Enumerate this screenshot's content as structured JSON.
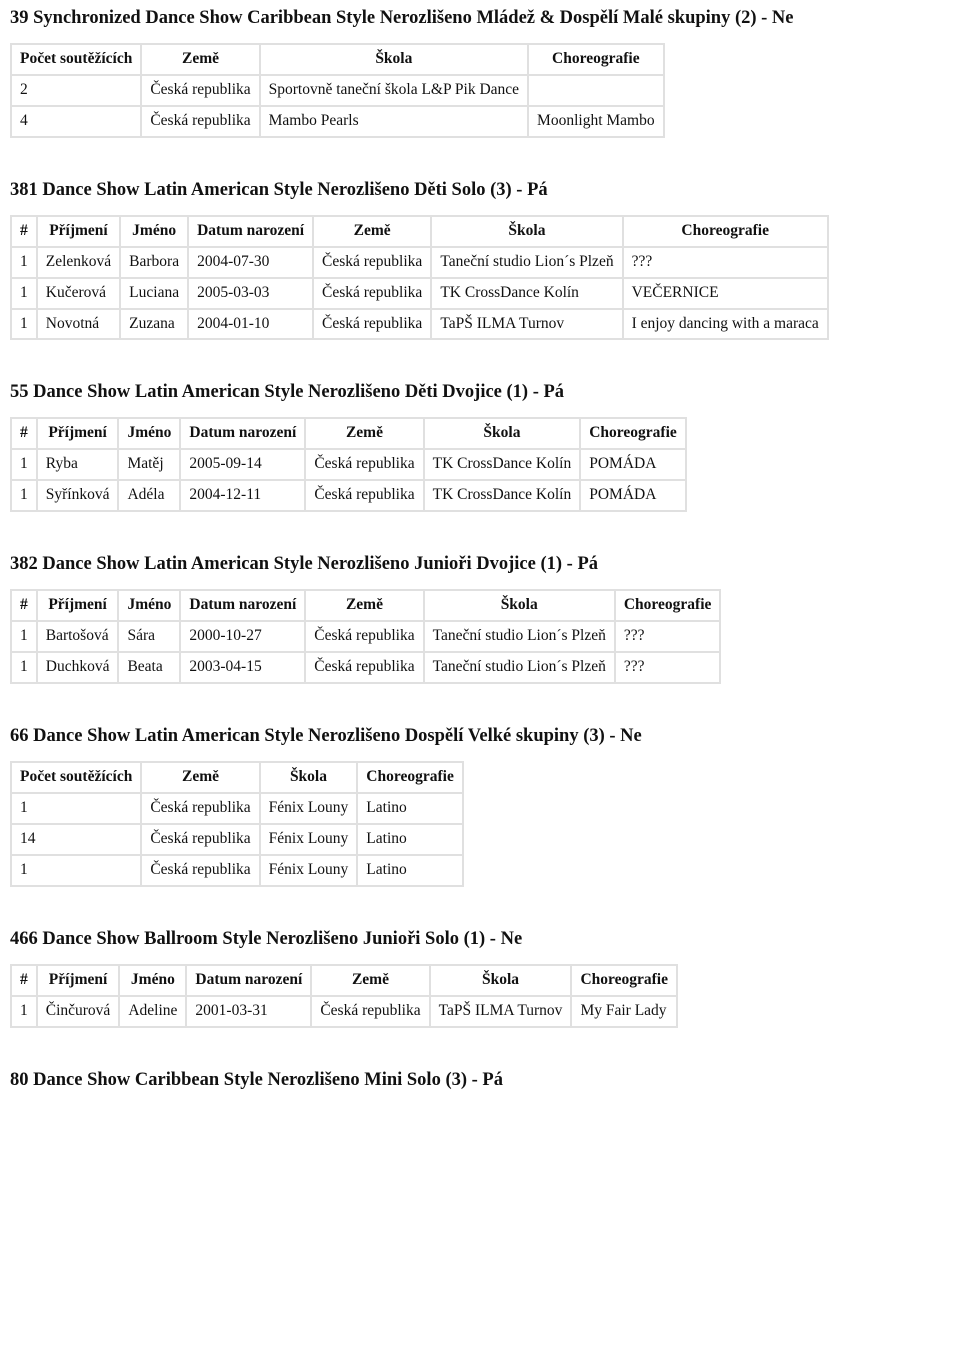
{
  "sections": [
    {
      "heading": "39 Synchronized Dance Show Caribbean Style Nerozlišeno Mládež & Dospělí Malé skupiny (2) - Ne",
      "columns": [
        "Počet soutěžících",
        "Země",
        "Škola",
        "Choreografie"
      ],
      "rows": [
        [
          "2",
          "Česká republika",
          "Sportovně taneční škola L&P Pik Dance",
          ""
        ],
        [
          "4",
          "Česká republika",
          "Mambo Pearls",
          "Moonlight Mambo"
        ]
      ]
    },
    {
      "heading": "381 Dance Show Latin American Style Nerozlišeno Děti Solo (3) - Pá",
      "columns": [
        "#",
        "Příjmení",
        "Jméno",
        "Datum narození",
        "Země",
        "Škola",
        "Choreografie"
      ],
      "rows": [
        [
          "1",
          "Zelenková",
          "Barbora",
          "2004-07-30",
          "Česká republika",
          "Taneční studio Lion´s Plzeň",
          "???"
        ],
        [
          "1",
          "Kučerová",
          "Luciana",
          "2005-03-03",
          "Česká republika",
          "TK CrossDance Kolín",
          "VEČERNICE"
        ],
        [
          "1",
          "Novotná",
          "Zuzana",
          "2004-01-10",
          "Česká republika",
          "TaPŠ ILMA Turnov",
          "I enjoy dancing with a maraca"
        ]
      ]
    },
    {
      "heading": "55 Dance Show Latin American Style Nerozlišeno Děti Dvojice (1) - Pá",
      "columns": [
        "#",
        "Příjmení",
        "Jméno",
        "Datum narození",
        "Země",
        "Škola",
        "Choreografie"
      ],
      "rows": [
        [
          "1",
          "Ryba",
          "Matěj",
          "2005-09-14",
          "Česká republika",
          "TK CrossDance Kolín",
          "POMÁDA"
        ],
        [
          "1",
          "Syřínková",
          "Adéla",
          "2004-12-11",
          "Česká republika",
          "TK CrossDance Kolín",
          "POMÁDA"
        ]
      ]
    },
    {
      "heading": "382 Dance Show Latin American Style Nerozlišeno Junioři Dvojice (1) - Pá",
      "columns": [
        "#",
        "Příjmení",
        "Jméno",
        "Datum narození",
        "Země",
        "Škola",
        "Choreografie"
      ],
      "rows": [
        [
          "1",
          "Bartošová",
          "Sára",
          "2000-10-27",
          "Česká republika",
          "Taneční studio Lion´s Plzeň",
          "???"
        ],
        [
          "1",
          "Duchková",
          "Beata",
          "2003-04-15",
          "Česká republika",
          "Taneční studio Lion´s Plzeň",
          "???"
        ]
      ]
    },
    {
      "heading": "66 Dance Show Latin American Style Nerozlišeno Dospělí Velké skupiny (3) - Ne",
      "columns": [
        "Počet soutěžících",
        "Země",
        "Škola",
        "Choreografie"
      ],
      "rows": [
        [
          "1",
          "Česká republika",
          "Fénix Louny",
          "Latino"
        ],
        [
          "14",
          "Česká republika",
          "Fénix Louny",
          "Latino"
        ],
        [
          "1",
          "Česká republika",
          "Fénix Louny",
          "Latino"
        ]
      ]
    },
    {
      "heading": "466 Dance Show Ballroom Style Nerozlišeno Junioři Solo (1) - Ne",
      "columns": [
        "#",
        "Příjmení",
        "Jméno",
        "Datum narození",
        "Země",
        "Škola",
        "Choreografie"
      ],
      "rows": [
        [
          "1",
          "Činčurová",
          "Adeline",
          "2001-03-31",
          "Česká republika",
          "TaPŠ ILMA Turnov",
          "My Fair Lady"
        ]
      ]
    },
    {
      "heading": "80 Dance Show Caribbean Style Nerozlišeno Mini Solo (3) - Pá",
      "columns": [],
      "rows": []
    }
  ]
}
